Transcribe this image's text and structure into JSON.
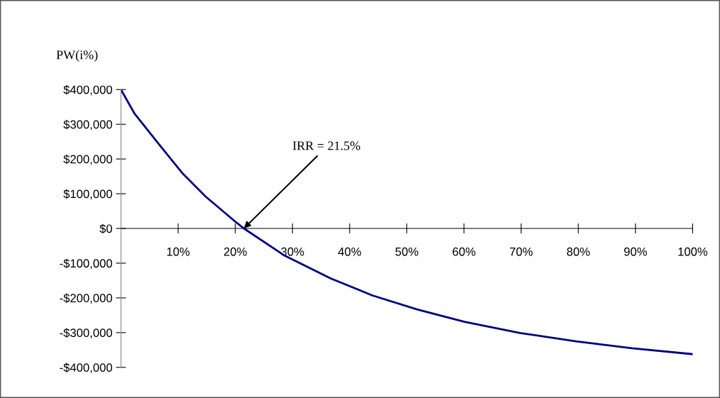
{
  "chart_data": {
    "type": "line",
    "ylabel": "PW(i%)",
    "x": [
      0,
      2.4,
      7,
      10.7,
      14.8,
      20.2,
      21.5,
      28.5,
      36.7,
      44,
      51.8,
      60.1,
      69.8,
      79.6,
      89.4,
      100
    ],
    "series": [
      {
        "color": "#000080",
        "values": [
          400000,
          330000,
          235000,
          160000,
          92000,
          17000,
          0,
          -77000,
          -144000,
          -193000,
          -233000,
          -269000,
          -301000,
          -325000,
          -345000,
          -362000
        ]
      }
    ],
    "xlim": [
      0,
      100
    ],
    "xticks": [
      {
        "value": 10,
        "label": "10%"
      },
      {
        "value": 20,
        "label": "20%"
      },
      {
        "value": 30,
        "label": "30%"
      },
      {
        "value": 40,
        "label": "40%"
      },
      {
        "value": 50,
        "label": "50%"
      },
      {
        "value": 60,
        "label": "60%"
      },
      {
        "value": 70,
        "label": "70%"
      },
      {
        "value": 80,
        "label": "80%"
      },
      {
        "value": 90,
        "label": "90%"
      },
      {
        "value": 100,
        "label": "100%"
      }
    ],
    "ylim": [
      -400000,
      400000
    ],
    "yticks": [
      {
        "value": 400000,
        "label": "$400,000"
      },
      {
        "value": 300000,
        "label": "$300,000"
      },
      {
        "value": 200000,
        "label": "$200,000"
      },
      {
        "value": 100000,
        "label": "$100,000"
      },
      {
        "value": 0,
        "label": "$0"
      },
      {
        "value": -100000,
        "label": "-$100,000"
      },
      {
        "value": -200000,
        "label": "-$200,000"
      },
      {
        "value": -300000,
        "label": "-$300,000"
      },
      {
        "value": -400000,
        "label": "-$400,000"
      }
    ],
    "annotations": [
      {
        "text": "IRR = 21.5%",
        "x": 21.5,
        "y": 0
      }
    ],
    "grid": false,
    "legend": false,
    "marker": "none",
    "line_style": "solid"
  }
}
